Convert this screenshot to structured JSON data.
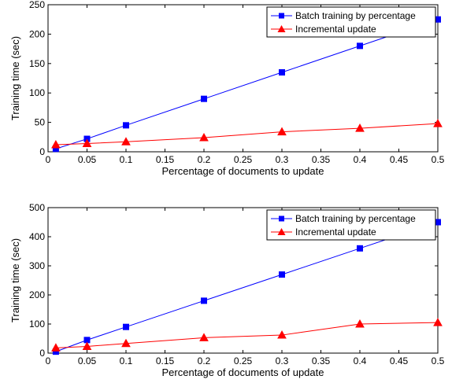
{
  "chart_data": [
    {
      "type": "line",
      "title": "",
      "xlabel": "Percentage of documents to update",
      "ylabel": "Training time (sec)",
      "xlim": [
        0,
        0.5
      ],
      "ylim": [
        0,
        250
      ],
      "xticks": [
        0,
        0.05,
        0.1,
        0.15,
        0.2,
        0.25,
        0.3,
        0.35,
        0.4,
        0.45,
        0.5
      ],
      "xtick_labels": [
        "0",
        "0.05",
        "0.1",
        "0.15",
        "0.2",
        "0.25",
        "0.3",
        "0.35",
        "0.4",
        "0.45",
        "0.5"
      ],
      "yticks": [
        0,
        50,
        100,
        150,
        200,
        250
      ],
      "ytick_labels": [
        "0",
        "50",
        "100",
        "150",
        "200",
        "250"
      ],
      "grid": false,
      "legend_position": "top-right",
      "series": [
        {
          "name": "Batch training by percentage",
          "color": "#0000ff",
          "marker": "square",
          "x": [
            0.01,
            0.05,
            0.1,
            0.2,
            0.3,
            0.4,
            0.5
          ],
          "y": [
            5,
            22,
            45,
            90,
            135,
            180,
            225
          ]
        },
        {
          "name": "Incremental update",
          "color": "#ff0000",
          "marker": "triangle",
          "x": [
            0.01,
            0.05,
            0.1,
            0.2,
            0.3,
            0.4,
            0.5
          ],
          "y": [
            12,
            14,
            17,
            24,
            34,
            40,
            48
          ]
        }
      ]
    },
    {
      "type": "line",
      "title": "",
      "xlabel": "Percentage of documents of update",
      "ylabel": "Training time (sec)",
      "xlim": [
        0,
        0.5
      ],
      "ylim": [
        0,
        500
      ],
      "xticks": [
        0,
        0.05,
        0.1,
        0.15,
        0.2,
        0.25,
        0.3,
        0.35,
        0.4,
        0.45,
        0.5
      ],
      "xtick_labels": [
        "0",
        "0.05",
        "0.1",
        "0.15",
        "0.2",
        "0.25",
        "0.3",
        "0.35",
        "0.4",
        "0.45",
        "0.5"
      ],
      "yticks": [
        0,
        100,
        200,
        300,
        400,
        500
      ],
      "ytick_labels": [
        "0",
        "100",
        "200",
        "300",
        "400",
        "500"
      ],
      "grid": false,
      "legend_position": "top-right",
      "series": [
        {
          "name": "Batch training by percentage",
          "color": "#0000ff",
          "marker": "square",
          "x": [
            0.01,
            0.05,
            0.1,
            0.2,
            0.3,
            0.4,
            0.5
          ],
          "y": [
            5,
            45,
            90,
            180,
            270,
            360,
            450
          ]
        },
        {
          "name": "Incremental update",
          "color": "#ff0000",
          "marker": "triangle",
          "x": [
            0.01,
            0.05,
            0.1,
            0.2,
            0.3,
            0.4,
            0.5
          ],
          "y": [
            18,
            23,
            33,
            53,
            62,
            100,
            105
          ]
        }
      ]
    }
  ]
}
